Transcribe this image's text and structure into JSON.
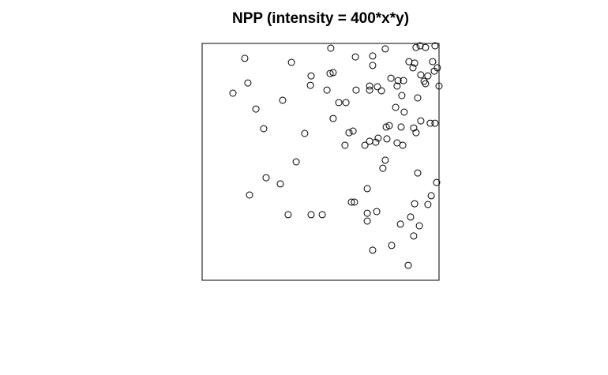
{
  "chart_data": {
    "type": "scatter",
    "title": "NPP (intensity = 400*x*y)",
    "xlabel": "",
    "ylabel": "",
    "xlim": [
      0,
      1
    ],
    "ylim": [
      0,
      1
    ],
    "grid": false,
    "axes_shown": false,
    "marker": "open-circle",
    "marker_color": "#000000",
    "points": [
      {
        "x": 0.983,
        "y": 0.99
      },
      {
        "x": 0.943,
        "y": 0.983
      },
      {
        "x": 0.903,
        "y": 0.983
      },
      {
        "x": 0.92,
        "y": 0.99
      },
      {
        "x": 0.773,
        "y": 0.977
      },
      {
        "x": 0.543,
        "y": 0.98
      },
      {
        "x": 0.72,
        "y": 0.947
      },
      {
        "x": 0.647,
        "y": 0.943
      },
      {
        "x": 0.18,
        "y": 0.937
      },
      {
        "x": 0.873,
        "y": 0.923
      },
      {
        "x": 0.897,
        "y": 0.917
      },
      {
        "x": 0.973,
        "y": 0.923
      },
      {
        "x": 0.377,
        "y": 0.92
      },
      {
        "x": 0.72,
        "y": 0.907
      },
      {
        "x": 0.89,
        "y": 0.897
      },
      {
        "x": 0.993,
        "y": 0.897
      },
      {
        "x": 0.98,
        "y": 0.883
      },
      {
        "x": 0.553,
        "y": 0.877
      },
      {
        "x": 0.54,
        "y": 0.873
      },
      {
        "x": 0.46,
        "y": 0.863
      },
      {
        "x": 0.923,
        "y": 0.867
      },
      {
        "x": 0.953,
        "y": 0.863
      },
      {
        "x": 0.797,
        "y": 0.853
      },
      {
        "x": 0.827,
        "y": 0.843
      },
      {
        "x": 0.85,
        "y": 0.843
      },
      {
        "x": 0.937,
        "y": 0.84
      },
      {
        "x": 0.193,
        "y": 0.833
      },
      {
        "x": 0.943,
        "y": 0.83
      },
      {
        "x": 0.457,
        "y": 0.823
      },
      {
        "x": 1.0,
        "y": 0.82
      },
      {
        "x": 0.707,
        "y": 0.82
      },
      {
        "x": 0.74,
        "y": 0.817
      },
      {
        "x": 0.823,
        "y": 0.82
      },
      {
        "x": 0.527,
        "y": 0.803
      },
      {
        "x": 0.707,
        "y": 0.803
      },
      {
        "x": 0.65,
        "y": 0.803
      },
      {
        "x": 0.757,
        "y": 0.8
      },
      {
        "x": 0.13,
        "y": 0.79
      },
      {
        "x": 0.843,
        "y": 0.78
      },
      {
        "x": 0.91,
        "y": 0.77
      },
      {
        "x": 0.34,
        "y": 0.76
      },
      {
        "x": 0.577,
        "y": 0.75
      },
      {
        "x": 0.607,
        "y": 0.75
      },
      {
        "x": 0.227,
        "y": 0.723
      },
      {
        "x": 0.817,
        "y": 0.73
      },
      {
        "x": 0.853,
        "y": 0.71
      },
      {
        "x": 0.553,
        "y": 0.683
      },
      {
        "x": 0.923,
        "y": 0.673
      },
      {
        "x": 0.963,
        "y": 0.663
      },
      {
        "x": 0.983,
        "y": 0.663
      },
      {
        "x": 0.79,
        "y": 0.653
      },
      {
        "x": 0.777,
        "y": 0.647
      },
      {
        "x": 0.84,
        "y": 0.647
      },
      {
        "x": 0.893,
        "y": 0.643
      },
      {
        "x": 0.26,
        "y": 0.64
      },
      {
        "x": 0.637,
        "y": 0.63
      },
      {
        "x": 0.62,
        "y": 0.623
      },
      {
        "x": 0.433,
        "y": 0.62
      },
      {
        "x": 0.903,
        "y": 0.623
      },
      {
        "x": 0.78,
        "y": 0.597
      },
      {
        "x": 0.743,
        "y": 0.6
      },
      {
        "x": 0.823,
        "y": 0.58
      },
      {
        "x": 0.707,
        "y": 0.587
      },
      {
        "x": 0.733,
        "y": 0.583
      },
      {
        "x": 0.847,
        "y": 0.57
      },
      {
        "x": 0.687,
        "y": 0.57
      },
      {
        "x": 0.603,
        "y": 0.57
      },
      {
        "x": 0.397,
        "y": 0.5
      },
      {
        "x": 0.773,
        "y": 0.507
      },
      {
        "x": 0.763,
        "y": 0.473
      },
      {
        "x": 0.91,
        "y": 0.453
      },
      {
        "x": 0.27,
        "y": 0.433
      },
      {
        "x": 0.33,
        "y": 0.407
      },
      {
        "x": 0.99,
        "y": 0.413
      },
      {
        "x": 0.697,
        "y": 0.387
      },
      {
        "x": 0.2,
        "y": 0.36
      },
      {
        "x": 0.967,
        "y": 0.357
      },
      {
        "x": 0.63,
        "y": 0.33
      },
      {
        "x": 0.643,
        "y": 0.33
      },
      {
        "x": 0.897,
        "y": 0.323
      },
      {
        "x": 0.953,
        "y": 0.32
      },
      {
        "x": 0.737,
        "y": 0.29
      },
      {
        "x": 0.697,
        "y": 0.283
      },
      {
        "x": 0.363,
        "y": 0.277
      },
      {
        "x": 0.46,
        "y": 0.277
      },
      {
        "x": 0.507,
        "y": 0.277
      },
      {
        "x": 0.88,
        "y": 0.267
      },
      {
        "x": 0.697,
        "y": 0.25
      },
      {
        "x": 0.837,
        "y": 0.237
      },
      {
        "x": 0.917,
        "y": 0.23
      },
      {
        "x": 0.893,
        "y": 0.187
      },
      {
        "x": 0.8,
        "y": 0.147
      },
      {
        "x": 0.72,
        "y": 0.127
      },
      {
        "x": 0.87,
        "y": 0.063
      }
    ]
  }
}
